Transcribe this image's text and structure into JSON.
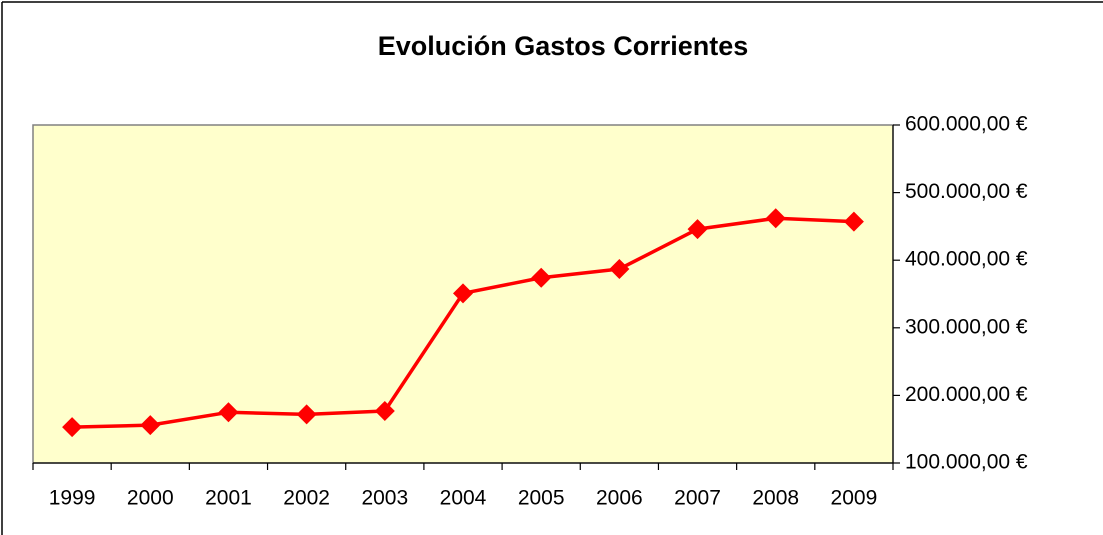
{
  "chart_data": {
    "type": "line",
    "title": "Evolución Gastos Corrientes",
    "categories": [
      "1999",
      "2000",
      "2001",
      "2002",
      "2003",
      "2004",
      "2005",
      "2006",
      "2007",
      "2008",
      "2009"
    ],
    "series": [
      {
        "name": "Gastos Corrientes",
        "color": "#ff0000",
        "values": [
          153000,
          156000,
          175000,
          172000,
          177000,
          351000,
          374000,
          387000,
          446000,
          462000,
          457000
        ]
      }
    ],
    "ylim": [
      100000,
      600000
    ],
    "yticks": [
      {
        "value": 100000,
        "label": "100.000,00 €"
      },
      {
        "value": 200000,
        "label": "200.000,00 €"
      },
      {
        "value": 300000,
        "label": "300.000,00 €"
      },
      {
        "value": 400000,
        "label": "400.000,00 €"
      },
      {
        "value": 500000,
        "label": "500.000,00 €"
      },
      {
        "value": 600000,
        "label": "600.000,00 €"
      }
    ],
    "y_axis_side": "right",
    "plot_background": "#ffffcc"
  }
}
